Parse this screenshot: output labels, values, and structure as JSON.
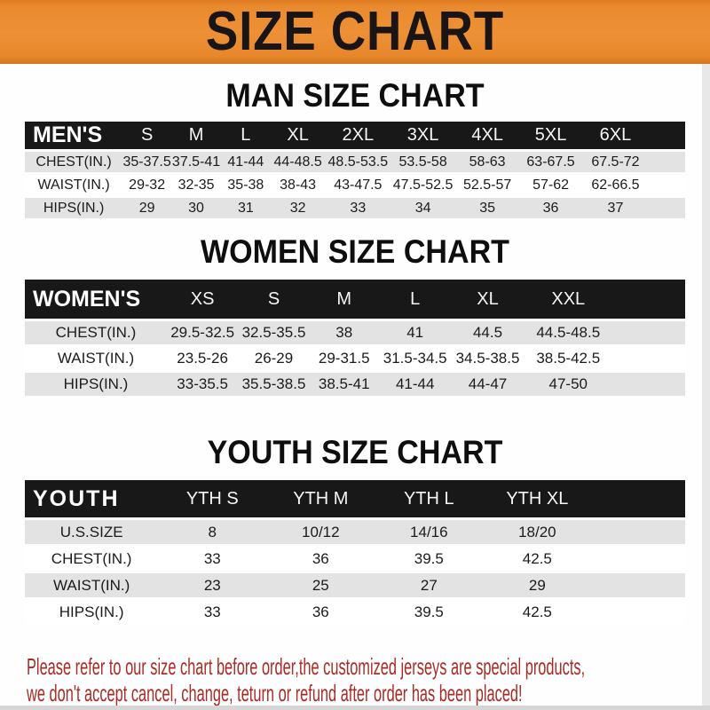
{
  "banner": {
    "title": "SIZE CHART"
  },
  "sections": [
    {
      "title": "MAN SIZE CHART",
      "header_label": "MEN'S",
      "columns": [
        "S",
        "M",
        "L",
        "XL",
        "2XL",
        "3XL",
        "4XL",
        "5XL",
        "6XL"
      ],
      "rows": [
        {
          "label": "CHEST(IN.)",
          "values": [
            "35-37.5",
            "37.5-41",
            "41-44",
            "44-48.5",
            "48.5-53.5",
            "53.5-58",
            "58-63",
            "63-67.5",
            "67.5-72"
          ]
        },
        {
          "label": "WAIST(IN.)",
          "values": [
            "29-32",
            "32-35",
            "35-38",
            "38-43",
            "43-47.5",
            "47.5-52.5",
            "52.5-57",
            "57-62",
            "62-66.5"
          ]
        },
        {
          "label": "HIPS(IN.)",
          "values": [
            "29",
            "30",
            "31",
            "32",
            "33",
            "34",
            "35",
            "36",
            "37"
          ]
        }
      ]
    },
    {
      "title": "WOMEN SIZE CHART",
      "header_label": "WOMEN'S",
      "columns": [
        "XS",
        "S",
        "M",
        "L",
        "XL",
        "XXL"
      ],
      "rows": [
        {
          "label": "CHEST(IN.)",
          "values": [
            "29.5-32.5",
            "32.5-35.5",
            "38",
            "41",
            "44.5",
            "44.5-48.5"
          ]
        },
        {
          "label": "WAIST(IN.)",
          "values": [
            "23.5-26",
            "26-29",
            "29-31.5",
            "31.5-34.5",
            "34.5-38.5",
            "38.5-42.5"
          ]
        },
        {
          "label": "HIPS(IN.)",
          "values": [
            "33-35.5",
            "35.5-38.5",
            "38.5-41",
            "41-44",
            "44-47",
            "47-50"
          ]
        }
      ]
    },
    {
      "title": "YOUTH SIZE CHART",
      "header_label": "YOUTH",
      "columns": [
        "YTH S",
        "YTH M",
        "YTH L",
        "YTH XL"
      ],
      "rows": [
        {
          "label": "U.S.SIZE",
          "values": [
            "8",
            "10/12",
            "14/16",
            "18/20"
          ]
        },
        {
          "label": "CHEST(IN.)",
          "values": [
            "33",
            "36",
            "39.5",
            "42.5"
          ]
        },
        {
          "label": "WAIST(IN.)",
          "values": [
            "23",
            "25",
            "27",
            "29"
          ]
        },
        {
          "label": "HIPS(IN.)",
          "values": [
            "33",
            "36",
            "39.5",
            "42.5"
          ]
        }
      ]
    }
  ],
  "footnote": {
    "line1": "Please refer to our size chart before order,the customized jerseys are special products,",
    "line2": "we don't accept cancel, change, teturn or refund after order has been placed!"
  },
  "colors": {
    "banner_orange": "#EA8A2E",
    "header_bar_black": "#181818",
    "row_gray": "#E3E3E3",
    "note_red": "#A82C26"
  }
}
